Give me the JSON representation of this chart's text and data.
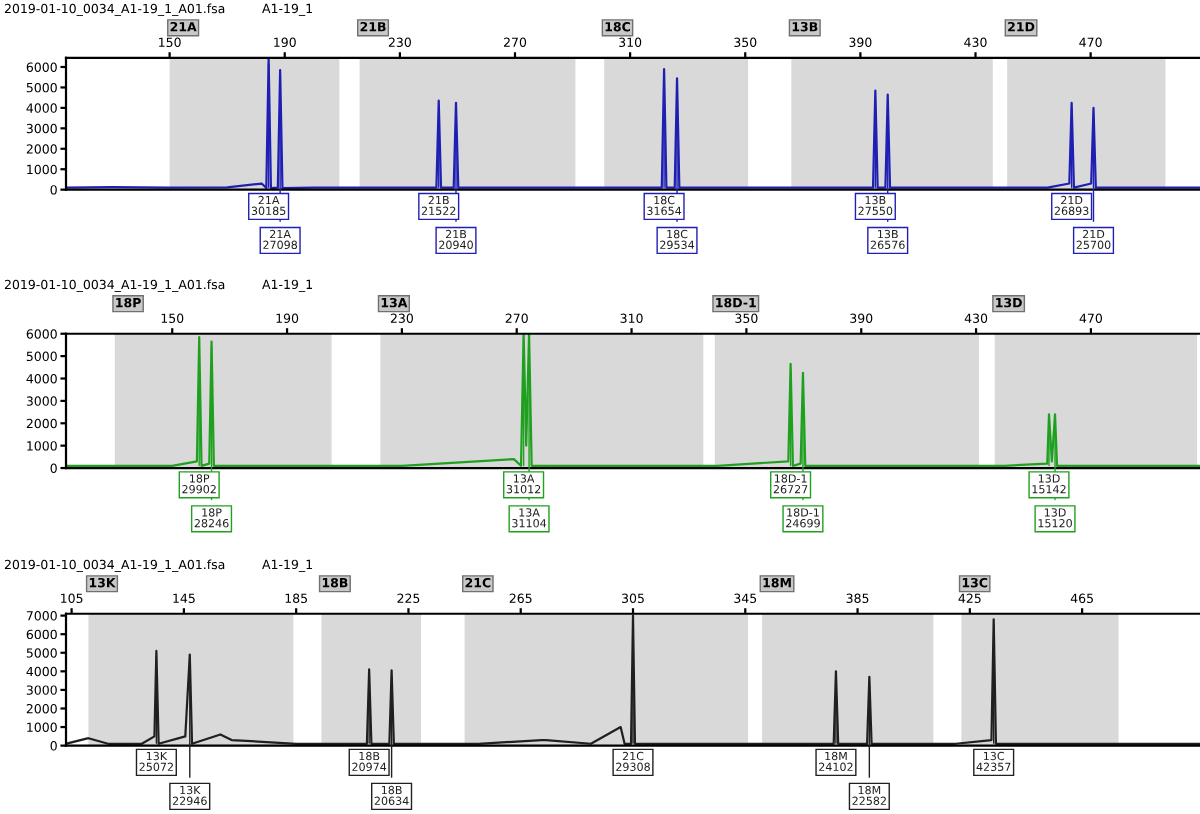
{
  "chart_data": [
    {
      "type": "line",
      "xlim": [
        114,
        508
      ],
      "xticks": [
        150,
        190,
        230,
        270,
        310,
        350,
        390,
        430,
        470
      ],
      "ylim": [
        0,
        6450
      ],
      "yticks": [
        0,
        1000,
        2000,
        3000,
        4000,
        5000,
        6000
      ],
      "grid": false,
      "legend": false,
      "marker": "none",
      "x": [
        114,
        130,
        150,
        170,
        182,
        183.6,
        184.4,
        185.2,
        187.6,
        188.4,
        189.2,
        200,
        216,
        235,
        242.7,
        243.5,
        244.3,
        248.7,
        249.5,
        250.3,
        270,
        300,
        321,
        321.8,
        322.6,
        325.5,
        326.3,
        327.1,
        340,
        380,
        394.4,
        395.2,
        396,
        398.7,
        399.5,
        400.3,
        430,
        455,
        462.6,
        463.4,
        464.2,
        470.2,
        471,
        471.8,
        490,
        508
      ],
      "series": [
        {
          "color": "#1f1fb4",
          "values": [
            100,
            120,
            100,
            110,
            300,
            80,
            6400,
            80,
            100,
            5850,
            80,
            100,
            100,
            100,
            100,
            4350,
            100,
            100,
            4250,
            100,
            100,
            100,
            100,
            5900,
            100,
            100,
            5450,
            100,
            100,
            100,
            100,
            4850,
            100,
            100,
            4650,
            100,
            100,
            100,
            300,
            4250,
            100,
            300,
            4000,
            100,
            100,
            100
          ]
        }
      ],
      "bands": [
        {
          "axis": "x",
          "from": 150,
          "to": 209,
          "label": "21A",
          "color": "#d9d9d9"
        },
        {
          "axis": "x",
          "from": 216,
          "to": 291,
          "label": "21B",
          "color": "#d9d9d9"
        },
        {
          "axis": "x",
          "from": 301,
          "to": 351,
          "label": "18C",
          "color": "#d9d9d9"
        },
        {
          "axis": "x",
          "from": 366,
          "to": 436,
          "label": "13B",
          "color": "#d9d9d9"
        },
        {
          "axis": "x",
          "from": 441,
          "to": 496,
          "label": "21D",
          "color": "#d9d9d9"
        }
      ],
      "annotations": [
        "2019-01-10_0034_A1-19_1_A01.fsa",
        "A1-19_1",
        {
          "text": "21A\n30185",
          "x": 184.4,
          "y": 6400
        },
        {
          "text": "21A\n27098",
          "x": 188.4,
          "y": 5850
        },
        {
          "text": "21B\n21522",
          "x": 243.5,
          "y": 4350
        },
        {
          "text": "21B\n20940",
          "x": 249.5,
          "y": 4250
        },
        {
          "text": "18C\n31654",
          "x": 321.8,
          "y": 5900
        },
        {
          "text": "18C\n29534",
          "x": 326.3,
          "y": 5450
        },
        {
          "text": "13B\n27550",
          "x": 395.2,
          "y": 4850
        },
        {
          "text": "13B\n26576",
          "x": 399.5,
          "y": 4650
        },
        {
          "text": "21D\n26893",
          "x": 463.4,
          "y": 4250
        },
        {
          "text": "21D\n25700",
          "x": 471,
          "y": 4000
        }
      ]
    },
    {
      "type": "line",
      "xlim": [
        113,
        508
      ],
      "xticks": [
        150,
        190,
        230,
        270,
        310,
        350,
        390,
        430,
        470
      ],
      "ylim": [
        0,
        6000
      ],
      "yticks": [
        0,
        1000,
        2000,
        3000,
        4000,
        5000,
        6000
      ],
      "grid": false,
      "legend": false,
      "marker": "none",
      "x": [
        113,
        130,
        150,
        158.6,
        159.4,
        160.2,
        162.9,
        163.7,
        164.5,
        190,
        230,
        269,
        271.5,
        272.4,
        273.3,
        274.3,
        275.2,
        300,
        340,
        364.6,
        365.4,
        366.2,
        368.9,
        369.7,
        370.5,
        400,
        440,
        454.8,
        455.4,
        456.4,
        457.5,
        458.2,
        480,
        508
      ],
      "series": [
        {
          "color": "#1fa01f",
          "values": [
            100,
            100,
            100,
            300,
            5850,
            100,
            200,
            5650,
            100,
            100,
            100,
            400,
            100,
            6000,
            1000,
            6000,
            100,
            100,
            100,
            300,
            4650,
            100,
            200,
            4250,
            100,
            100,
            100,
            200,
            2400,
            300,
            2400,
            100,
            100,
            100
          ]
        }
      ],
      "bands": [
        {
          "axis": "x",
          "from": 130,
          "to": 205.5,
          "label": "18P",
          "color": "#d9d9d9"
        },
        {
          "axis": "x",
          "from": 222.5,
          "to": 335,
          "label": "13A",
          "color": "#d9d9d9"
        },
        {
          "axis": "x",
          "from": 339,
          "to": 431,
          "label": "18D-1",
          "color": "#d9d9d9"
        },
        {
          "axis": "x",
          "from": 436.5,
          "to": 507,
          "label": "13D",
          "color": "#d9d9d9"
        }
      ],
      "annotations": [
        "2019-01-10_0034_A1-19_1_A01.fsa",
        "A1-19_1",
        {
          "text": "18P\n29902",
          "x": 159.4,
          "y": 5850
        },
        {
          "text": "18P\n28246",
          "x": 163.7,
          "y": 5650
        },
        {
          "text": "13A\n31012",
          "x": 272.4,
          "y": 6000
        },
        {
          "text": "13A\n31104",
          "x": 274.3,
          "y": 6000
        },
        {
          "text": "18D-1\n26727",
          "x": 365.4,
          "y": 4650
        },
        {
          "text": "18D-1\n24699",
          "x": 369.7,
          "y": 4250
        },
        {
          "text": "13D\n15142",
          "x": 455.4,
          "y": 2400
        },
        {
          "text": "13D\n15120",
          "x": 457.5,
          "y": 2400
        }
      ]
    },
    {
      "type": "line",
      "xlim": [
        103,
        507
      ],
      "xticks": [
        105,
        145,
        185,
        225,
        265,
        305,
        345,
        385,
        425,
        465
      ],
      "ylim": [
        0,
        7100
      ],
      "yticks": [
        0,
        1000,
        2000,
        3000,
        4000,
        5000,
        6000,
        7000
      ],
      "grid": false,
      "legend": false,
      "marker": "none",
      "x": [
        103,
        111,
        118,
        130,
        134.5,
        135.2,
        136,
        145.5,
        147.1,
        147.9,
        158,
        162,
        185,
        205,
        210.2,
        211,
        211.8,
        218.2,
        219,
        219.8,
        250,
        272.4,
        274,
        290,
        300.6,
        302,
        304.3,
        305,
        305.7,
        340,
        376.5,
        377.3,
        378.1,
        388.4,
        389.2,
        390,
        420,
        432.7,
        433.5,
        434.3,
        470,
        507
      ],
      "series": [
        {
          "color": "#202020",
          "values": [
            100,
            400,
            100,
            100,
            500,
            5100,
            100,
            500,
            4900,
            100,
            600,
            300,
            100,
            100,
            100,
            4100,
            100,
            100,
            4050,
            100,
            100,
            300,
            300,
            100,
            1000,
            100,
            100,
            7000,
            100,
            100,
            100,
            4000,
            100,
            100,
            3700,
            100,
            100,
            300,
            6800,
            100,
            100,
            100
          ]
        }
      ],
      "bands": [
        {
          "axis": "x",
          "from": 111,
          "to": 184,
          "label": "13K",
          "color": "#d9d9d9"
        },
        {
          "axis": "x",
          "from": 194,
          "to": 229.5,
          "label": "18B",
          "color": "#d9d9d9"
        },
        {
          "axis": "x",
          "from": 245,
          "to": 346,
          "label": "21C",
          "color": "#d9d9d9"
        },
        {
          "axis": "x",
          "from": 351,
          "to": 412,
          "label": "18M",
          "color": "#d9d9d9"
        },
        {
          "axis": "x",
          "from": 422,
          "to": 478,
          "label": "13C",
          "color": "#d9d9d9"
        }
      ],
      "annotations": [
        "2019-01-10_0034_A1-19_1_A01.fsa",
        "A1-19_1",
        {
          "text": "13K\n25072",
          "x": 135.2,
          "y": 5100
        },
        {
          "text": "13K\n22946",
          "x": 147.1,
          "y": 4900
        },
        {
          "text": "18B\n20974",
          "x": 211,
          "y": 4100
        },
        {
          "text": "18B\n20634",
          "x": 219,
          "y": 4050
        },
        {
          "text": "21C\n29308",
          "x": 305,
          "y": 7000
        },
        {
          "text": "18M\n24102",
          "x": 377.3,
          "y": 4000
        },
        {
          "text": "18M\n22582",
          "x": 389.2,
          "y": 3700
        },
        {
          "text": "13C\n42357",
          "x": 433.5,
          "y": 6800
        }
      ]
    }
  ]
}
